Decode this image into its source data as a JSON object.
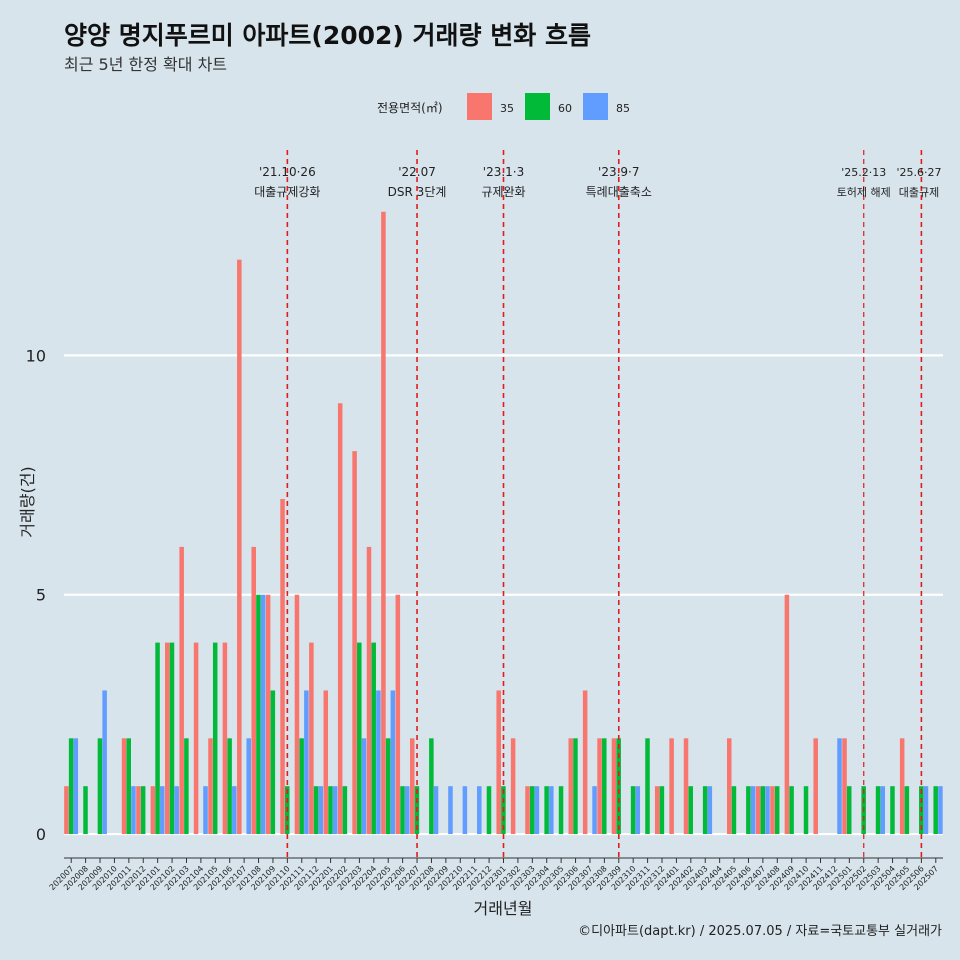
{
  "chart_data": {
    "type": "bar",
    "title": "양양 명지푸르미 아파트(2002) 거래량 변화 흐름",
    "subtitle": "최근 5년 한정 확대 차트",
    "xlabel": "거래년월",
    "ylabel": "거래량(건)",
    "caption": "©디아파트(dapt.kr) / 2025.07.05 / 자료=국토교통부 실거래가",
    "ylim": [
      -0.5,
      14.5
    ],
    "yticks": [
      0,
      5,
      10
    ],
    "legend": {
      "title": "전용면적(㎡)",
      "position": "top"
    },
    "colors": {
      "35": "#f8766d",
      "60": "#00ba38",
      "85": "#619cff"
    },
    "categories": [
      "202007",
      "202008",
      "202009",
      "202010",
      "202011",
      "202012",
      "202101",
      "202102",
      "202103",
      "202104",
      "202105",
      "202106",
      "202107",
      "202108",
      "202109",
      "202110",
      "202111",
      "202112",
      "202201",
      "202202",
      "202203",
      "202204",
      "202205",
      "202206",
      "202207",
      "202208",
      "202209",
      "202210",
      "202211",
      "202212",
      "202301",
      "202302",
      "202303",
      "202304",
      "202305",
      "202306",
      "202307",
      "202308",
      "202309",
      "202310",
      "202311",
      "202312",
      "202401",
      "202402",
      "202403",
      "202404",
      "202405",
      "202406",
      "202407",
      "202408",
      "202409",
      "202410",
      "202411",
      "202412",
      "202501",
      "202502",
      "202503",
      "202504",
      "202505",
      "202506",
      "202507"
    ],
    "series": [
      {
        "name": "35",
        "values": [
          1,
          0,
          0,
          0,
          2,
          1,
          1,
          4,
          6,
          4,
          2,
          4,
          12,
          6,
          5,
          7,
          5,
          4,
          3,
          9,
          8,
          6,
          13,
          5,
          2,
          0,
          0,
          0,
          0,
          0,
          3,
          2,
          1,
          0,
          0,
          2,
          3,
          2,
          2,
          0,
          0,
          1,
          2,
          2,
          0,
          0,
          2,
          0,
          1,
          1,
          5,
          0,
          2,
          0,
          2,
          0,
          0,
          0,
          2,
          0,
          0
        ]
      },
      {
        "name": "60",
        "values": [
          2,
          1,
          2,
          0,
          2,
          1,
          4,
          4,
          2,
          0,
          4,
          2,
          0,
          5,
          3,
          1,
          2,
          1,
          1,
          1,
          4,
          4,
          2,
          1,
          1,
          2,
          0,
          0,
          0,
          1,
          1,
          0,
          1,
          1,
          1,
          2,
          0,
          2,
          2,
          1,
          2,
          1,
          0,
          1,
          1,
          0,
          1,
          1,
          1,
          1,
          1,
          1,
          0,
          0,
          1,
          1,
          1,
          1,
          1,
          1,
          1
        ]
      },
      {
        "name": "85",
        "values": [
          2,
          0,
          3,
          0,
          1,
          0,
          1,
          1,
          0,
          1,
          0,
          1,
          2,
          5,
          0,
          0,
          3,
          1,
          1,
          0,
          2,
          3,
          3,
          1,
          0,
          1,
          1,
          1,
          1,
          0,
          0,
          0,
          1,
          1,
          0,
          0,
          1,
          0,
          0,
          1,
          0,
          0,
          0,
          0,
          1,
          0,
          0,
          1,
          1,
          0,
          0,
          0,
          0,
          2,
          0,
          0,
          1,
          0,
          0,
          1,
          1
        ]
      }
    ],
    "annotations": [
      {
        "at": "202110",
        "date": "'21.10·26",
        "label": "대출규제강화"
      },
      {
        "at": "202207",
        "date": "'22.07",
        "label": "DSR 3단계"
      },
      {
        "at": "202301",
        "date": "'23.1·3",
        "label": "규제완화"
      },
      {
        "at": "202309",
        "date": "'23.9·7",
        "label": "특례대출축소"
      },
      {
        "at": "202502",
        "date": "'25.2·13",
        "label": "토허제 해제"
      },
      {
        "at": "202506",
        "date": "'25.6·27",
        "label": "대출규제"
      }
    ]
  }
}
